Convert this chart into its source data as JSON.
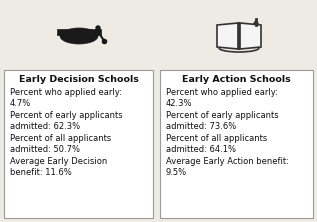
{
  "left_title": "Early Decision Schools",
  "right_title": "Early Action Schools",
  "left_lines": [
    "Percent who applied early:\n4.7%",
    "Percent of early applicants\nadmitted: 62.3%",
    "Percent of all applicants\nadmitted: 50.7%",
    "Average Early Decision\nbenefit: 11.6%"
  ],
  "right_lines": [
    "Percent who applied early:\n42.3%",
    "Percent of early applicants\nadmitted: 73.6%",
    "Percent of all applicants\nadmitted: 64.1%",
    "Average Early Action benefit:\n9.5%"
  ],
  "bg_color": "#eeebe5",
  "box_color": "#ffffff",
  "border_color": "#999999",
  "text_color": "#111111",
  "title_fontsize": 6.8,
  "body_fontsize": 6.0
}
